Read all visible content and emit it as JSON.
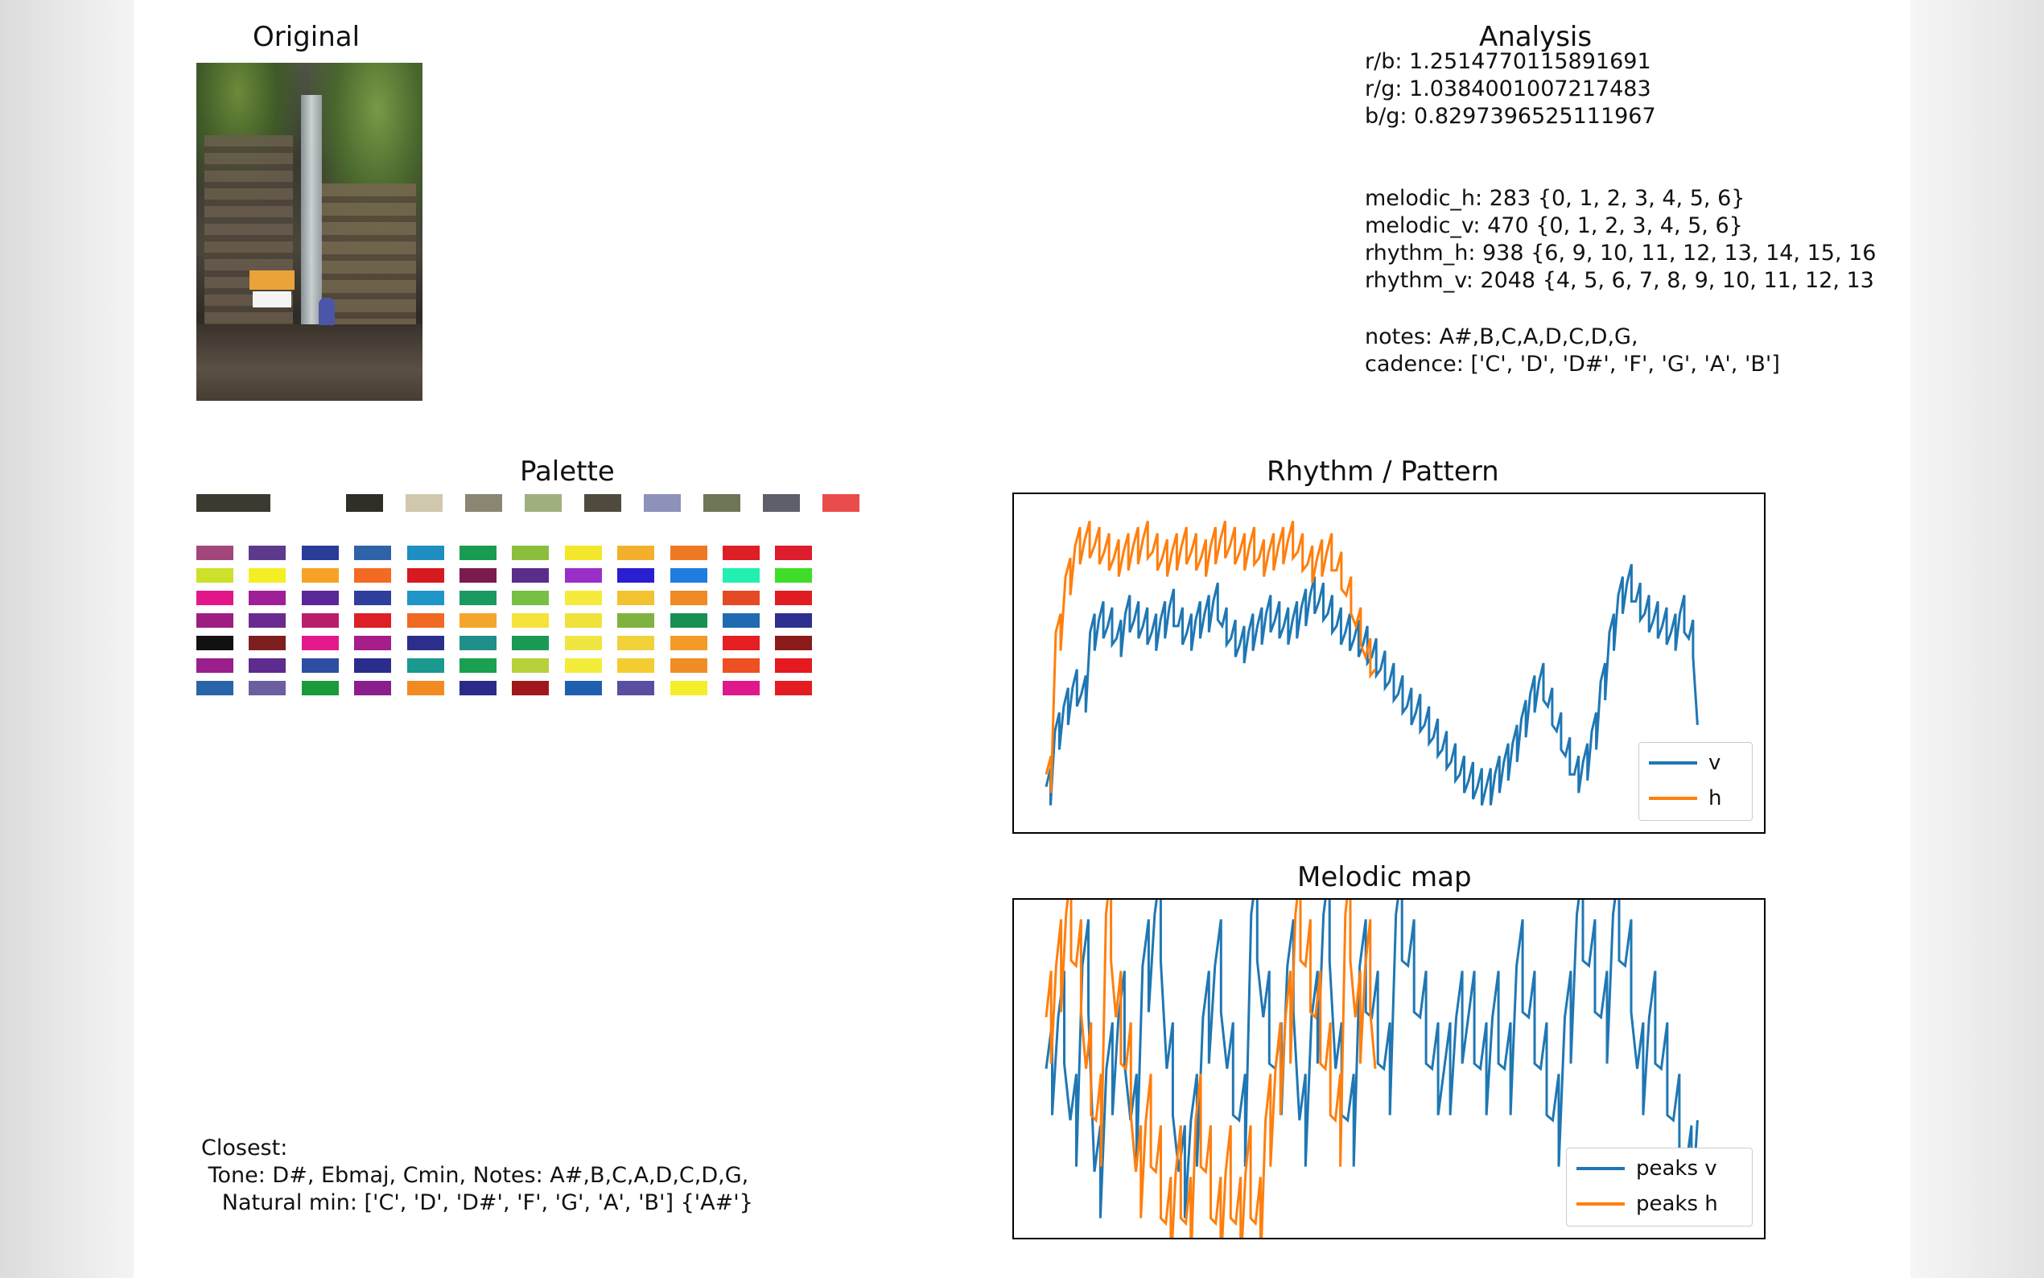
{
  "original": {
    "title": "Original"
  },
  "analysis": {
    "title": "Analysis",
    "ratios": [
      "r/b: 1.2514770115891691",
      "r/g: 1.0384001007217483",
      "b/g: 0.8297396525111967"
    ],
    "stats": [
      "melodic_h: 283 {0, 1, 2, 3, 4, 5, 6}",
      "melodic_v: 470 {0, 1, 2, 3, 4, 5, 6}",
      "rhythm_h: 938 {6, 9, 10, 11, 12, 13, 14, 15, 16",
      "rhythm_v: 2048 {4, 5, 6, 7, 8, 9, 10, 11, 12, 13"
    ],
    "notes": "notes: A#,B,C,A,D,C,D,G,",
    "cadence": "cadence: ['C', 'D', 'D#', 'F', 'G', 'A', 'B']"
  },
  "palette": {
    "title": "Palette",
    "main": [
      "#3b3a30",
      "#ffffff",
      "#2f2e27",
      "#cfc8ae",
      "#8a8672",
      "#9fb07e",
      "#4f4a3d",
      "#8c92b9",
      "#6d7657",
      "#5f5f6b",
      "#ea4c4b"
    ],
    "grid": [
      [
        "#a1477b",
        "#5e3a8c",
        "#2b3c99",
        "#2e63a8",
        "#1f8fc2",
        "#199c52",
        "#8bbf3b",
        "#f2e72b",
        "#f3b02c",
        "#ed7a23",
        "#df1f26",
        "#dc1d2d"
      ],
      [
        "#cde02a",
        "#f4ee25",
        "#f7a226",
        "#f36a22",
        "#d71920",
        "#7b1a4e",
        "#5a2d8c",
        "#9a2fc8",
        "#2a1fd0",
        "#1f7de0",
        "#22f0b0",
        "#3fdd2a"
      ],
      [
        "#e3178a",
        "#a01e96",
        "#5a2798",
        "#2d3e9d",
        "#1f95c8",
        "#1a9a62",
        "#78c043",
        "#f6ea3c",
        "#f3c230",
        "#ef8a24",
        "#e44a24",
        "#e11b22"
      ],
      [
        "#9e1d82",
        "#6b2a8f",
        "#b91e6c",
        "#dd1f26",
        "#f06a24",
        "#f4a52c",
        "#f3e33a",
        "#f0e23a",
        "#7fb23f",
        "#198f54",
        "#1f6ab0",
        "#2e2f8f"
      ],
      [
        "#111111",
        "#7d1f1f",
        "#e21a8c",
        "#a71d8a",
        "#2c2e8c",
        "#1f8f8a",
        "#1a9a55",
        "#f0e642",
        "#f2d23a",
        "#f39a27",
        "#e51f22",
        "#8b1a1a"
      ],
      [
        "#9a1e8c",
        "#5e2b8f",
        "#2d4ea2",
        "#2a2d8b",
        "#1a9a8e",
        "#1aa050",
        "#b5d23a",
        "#f4ec3a",
        "#f3cc2f",
        "#f08d26",
        "#ee4f23",
        "#e51a20"
      ],
      [
        "#2a64a8",
        "#6c5fa0",
        "#1a9a3a",
        "#8a1e8c",
        "#f28a22",
        "#2a2a8a",
        "#a1171c",
        "#1f5fb0",
        "#5a4ea0",
        "#f4ee2a",
        "#e0188c",
        "#e41b20"
      ]
    ]
  },
  "closest": {
    "line1": "Closest:",
    "line2": " Tone: D#, Ebmaj, Cmin, Notes: A#,B,C,A,D,C,D,G,",
    "line3": "   Natural min: ['C', 'D', 'D#', 'F', 'G', 'A', 'B'] {'A#'}"
  },
  "chart_data": [
    {
      "type": "line",
      "title": "Rhythm / Pattern",
      "legend_position": "lower-right",
      "series": [
        {
          "name": "v",
          "color": "#1f77b4",
          "values": [
            10,
            28,
            36,
            42,
            40,
            60,
            64,
            62,
            58,
            66,
            64,
            62,
            60,
            64,
            68,
            62,
            60,
            64,
            66,
            70,
            62,
            58,
            56,
            60,
            62,
            66,
            64,
            62,
            64,
            68,
            72,
            70,
            66,
            62,
            60,
            58,
            56,
            52,
            48,
            44,
            40,
            36,
            34,
            30,
            26,
            22,
            18,
            14,
            12,
            10,
            10,
            14,
            18,
            24,
            32,
            40,
            44,
            36,
            28,
            20,
            14,
            18,
            28,
            44,
            60,
            72,
            76,
            70,
            66,
            64,
            62,
            60,
            66,
            58,
            30
          ]
        },
        {
          "name": "h",
          "color": "#ff7f0e",
          "values": [
            14,
            60,
            78,
            88,
            90,
            88,
            86,
            84,
            86,
            88,
            90,
            86,
            84,
            86,
            88,
            86,
            84,
            88,
            90,
            88,
            86,
            88,
            84,
            86,
            88,
            90,
            86,
            82,
            84,
            86,
            80,
            72,
            62,
            52,
            48
          ]
        }
      ]
    },
    {
      "type": "line",
      "title": "Melodic map",
      "legend_position": "lower-right",
      "series": [
        {
          "name": "peaks v",
          "color": "#1f77b4",
          "values": [
            3,
            4,
            2,
            5,
            1,
            3,
            4,
            2,
            5,
            6,
            3,
            1,
            2,
            4,
            5,
            3,
            2,
            6,
            4,
            3,
            5,
            2,
            4,
            6,
            3,
            2,
            5,
            4,
            3,
            6,
            5,
            4,
            3,
            3,
            4,
            4,
            3,
            4,
            3,
            5,
            4,
            3,
            2,
            4,
            6,
            5,
            4,
            6,
            5,
            3,
            4,
            3,
            2,
            1,
            2
          ]
        },
        {
          "name": "peaks h",
          "color": "#ff7f0e",
          "values": [
            4,
            5,
            6,
            5,
            3,
            2,
            6,
            4,
            3,
            1,
            2,
            1,
            0,
            1,
            0,
            2,
            1,
            0,
            1,
            0,
            1,
            0,
            2,
            3,
            4,
            6,
            5,
            4,
            3,
            2,
            6,
            4,
            5,
            3
          ]
        }
      ]
    }
  ]
}
